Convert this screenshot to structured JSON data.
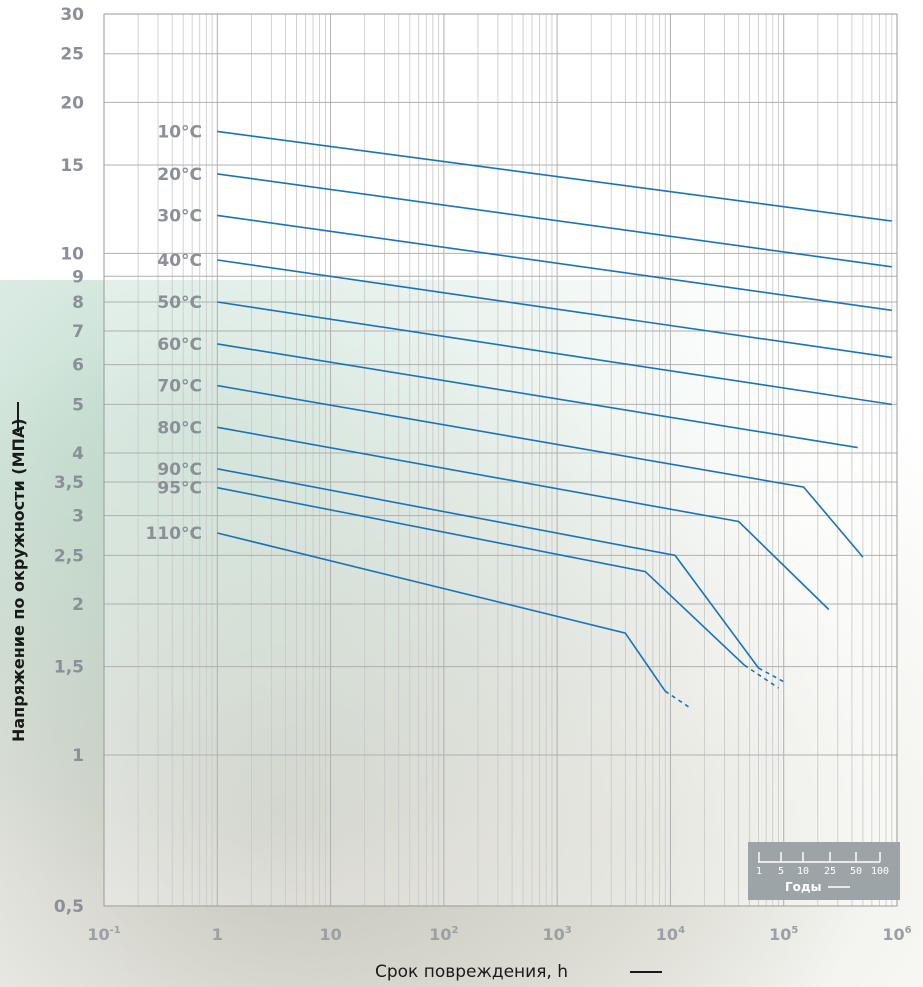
{
  "chart_data": {
    "type": "line",
    "x_scale": "log",
    "y_scale": "log",
    "xlabel": "Срок повреждения, h",
    "ylabel": "Напряжение по окружности (МПА)",
    "xlim": [
      0.1,
      1000000
    ],
    "ylim": [
      0.5,
      30
    ],
    "x_ticks": [
      {
        "v": 0.1,
        "base": "10",
        "exp": "-1"
      },
      {
        "v": 1,
        "base": "1",
        "exp": ""
      },
      {
        "v": 10,
        "base": "10",
        "exp": ""
      },
      {
        "v": 100,
        "base": "10",
        "exp": "2"
      },
      {
        "v": 1000,
        "base": "10",
        "exp": "3"
      },
      {
        "v": 10000,
        "base": "10",
        "exp": "4"
      },
      {
        "v": 100000,
        "base": "10",
        "exp": "5"
      },
      {
        "v": 1000000,
        "base": "10",
        "exp": "6"
      }
    ],
    "y_ticks": [
      {
        "v": 30,
        "label": "30"
      },
      {
        "v": 25,
        "label": "25"
      },
      {
        "v": 20,
        "label": "20"
      },
      {
        "v": 15,
        "label": "15"
      },
      {
        "v": 10,
        "label": "10"
      },
      {
        "v": 9,
        "label": "9"
      },
      {
        "v": 8,
        "label": "8"
      },
      {
        "v": 7,
        "label": "7"
      },
      {
        "v": 6,
        "label": "6"
      },
      {
        "v": 5,
        "label": "5"
      },
      {
        "v": 4,
        "label": "4"
      },
      {
        "v": 3.5,
        "label": "3,5"
      },
      {
        "v": 3,
        "label": "3"
      },
      {
        "v": 2.5,
        "label": "2,5"
      },
      {
        "v": 2,
        "label": "2"
      },
      {
        "v": 1.5,
        "label": "1,5"
      },
      {
        "v": 1,
        "label": "1"
      },
      {
        "v": 0.5,
        "label": "0,5"
      }
    ],
    "series": [
      {
        "name": "10°C",
        "points": [
          [
            1,
            17.5
          ],
          [
            900000,
            11.6
          ]
        ],
        "dashed": []
      },
      {
        "name": "20°C",
        "points": [
          [
            1,
            14.4
          ],
          [
            900000,
            9.4
          ]
        ],
        "dashed": []
      },
      {
        "name": "30°C",
        "points": [
          [
            1,
            11.9
          ],
          [
            900000,
            7.7
          ]
        ],
        "dashed": []
      },
      {
        "name": "40°C",
        "points": [
          [
            1,
            9.7
          ],
          [
            900000,
            6.2
          ]
        ],
        "dashed": []
      },
      {
        "name": "50°C",
        "points": [
          [
            1,
            8.0
          ],
          [
            900000,
            5.0
          ]
        ],
        "dashed": []
      },
      {
        "name": "60°C",
        "points": [
          [
            1,
            6.6
          ],
          [
            450000,
            4.1
          ]
        ],
        "dashed": []
      },
      {
        "name": "70°C",
        "points": [
          [
            1,
            5.45
          ],
          [
            150000,
            3.42
          ],
          [
            500000,
            2.48
          ]
        ],
        "dashed": []
      },
      {
        "name": "80°C",
        "points": [
          [
            1,
            4.5
          ],
          [
            40000,
            2.92
          ],
          [
            250000,
            1.95
          ]
        ],
        "dashed": []
      },
      {
        "name": "90°C",
        "points": [
          [
            1,
            3.72
          ],
          [
            11000,
            2.5
          ],
          [
            60000,
            1.49
          ]
        ],
        "dashed": [
          [
            60000,
            1.49
          ],
          [
            100000,
            1.4
          ]
        ]
      },
      {
        "name": "95°C",
        "points": [
          [
            1,
            3.41
          ],
          [
            6000,
            2.32
          ],
          [
            45000,
            1.51
          ]
        ],
        "dashed": [
          [
            45000,
            1.51
          ],
          [
            90000,
            1.36
          ]
        ]
      },
      {
        "name": "110°C",
        "points": [
          [
            1,
            2.77
          ],
          [
            4000,
            1.75
          ],
          [
            9000,
            1.34
          ]
        ],
        "dashed": [
          [
            9000,
            1.34
          ],
          [
            15000,
            1.24
          ]
        ]
      }
    ],
    "inset": {
      "tick_labels": [
        "1",
        "5",
        "10",
        "25",
        "50",
        "100"
      ],
      "label": "Годы"
    }
  }
}
